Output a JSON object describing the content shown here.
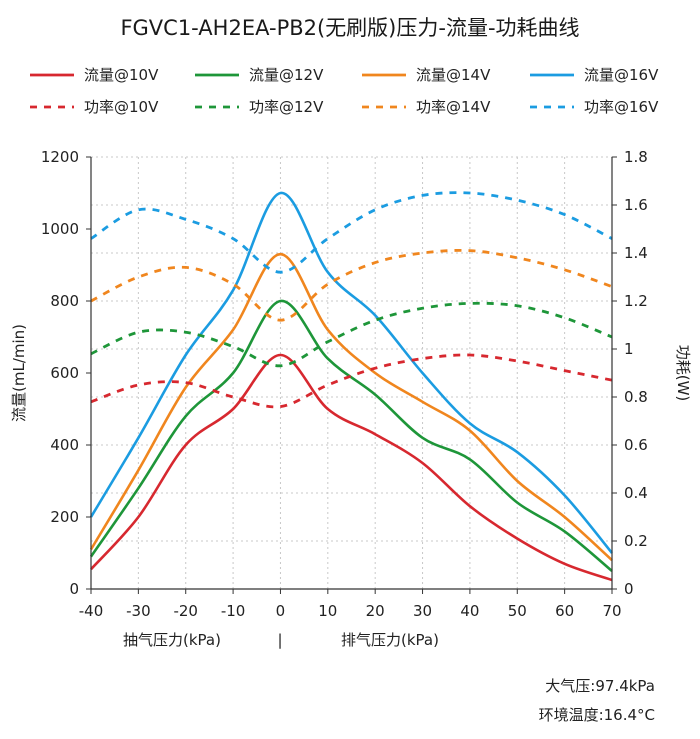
{
  "chart_data": {
    "type": "line",
    "title": "FGVC1-AH2EA-PB2(无刷版)压力-流量-功耗曲线",
    "ylabel": "流量(mL/min)",
    "y2label": "功耗(W)",
    "xlabel_left": "抽气压力(kPa)",
    "xlabel_sep": "|",
    "xlabel_right": "排气压力(kPa)",
    "xlim": [
      -40,
      70
    ],
    "ylim": [
      0,
      1200
    ],
    "y2lim": [
      0,
      1.8
    ],
    "xticks": [
      "-40",
      "-30",
      "-20",
      "-10",
      "0",
      "10",
      "20",
      "30",
      "40",
      "50",
      "60",
      "70"
    ],
    "yticks": [
      "0",
      "200",
      "400",
      "600",
      "800",
      "1000",
      "1200"
    ],
    "y2ticks": [
      "0",
      "0.2",
      "0.4",
      "0.6",
      "0.8",
      "1",
      "1.2",
      "1.4",
      "1.6",
      "1.8"
    ],
    "grid": true,
    "legend_position": "top",
    "x": [
      -40,
      -30,
      -20,
      -10,
      0,
      10,
      20,
      30,
      40,
      50,
      60,
      70
    ],
    "series": [
      {
        "name": "流量@10V",
        "color": "#d7282f",
        "axis": "left",
        "dash": false,
        "values": [
          55,
          200,
          400,
          500,
          650,
          500,
          430,
          350,
          230,
          140,
          70,
          25
        ]
      },
      {
        "name": "流量@12V",
        "color": "#1e9639",
        "axis": "left",
        "dash": false,
        "values": [
          90,
          280,
          480,
          600,
          800,
          640,
          540,
          420,
          360,
          240,
          160,
          50
        ]
      },
      {
        "name": "流量@14V",
        "color": "#f0861e",
        "axis": "left",
        "dash": false,
        "values": [
          110,
          330,
          560,
          720,
          930,
          720,
          600,
          520,
          440,
          300,
          200,
          80
        ]
      },
      {
        "name": "流量@16V",
        "color": "#1b9ce1",
        "axis": "left",
        "dash": false,
        "values": [
          200,
          420,
          650,
          830,
          1100,
          880,
          760,
          600,
          460,
          380,
          260,
          100
        ]
      },
      {
        "name": "功率@10V",
        "color": "#d7282f",
        "axis": "right",
        "dash": true,
        "values": [
          0.78,
          0.85,
          0.86,
          0.8,
          0.76,
          0.85,
          0.92,
          0.96,
          0.975,
          0.95,
          0.91,
          0.87
        ]
      },
      {
        "name": "功率@12V",
        "color": "#1e9639",
        "axis": "right",
        "dash": true,
        "values": [
          0.98,
          1.07,
          1.07,
          1.01,
          0.93,
          1.03,
          1.12,
          1.17,
          1.19,
          1.18,
          1.13,
          1.05
        ]
      },
      {
        "name": "功率@14V",
        "color": "#f0861e",
        "axis": "right",
        "dash": true,
        "values": [
          1.2,
          1.3,
          1.34,
          1.27,
          1.12,
          1.27,
          1.36,
          1.4,
          1.41,
          1.38,
          1.33,
          1.26
        ]
      },
      {
        "name": "功率@16V",
        "color": "#1b9ce1",
        "axis": "right",
        "dash": true,
        "values": [
          1.46,
          1.58,
          1.54,
          1.46,
          1.32,
          1.46,
          1.58,
          1.64,
          1.65,
          1.62,
          1.56,
          1.46
        ]
      }
    ]
  },
  "notes": {
    "pressure": "大气压:97.4kPa",
    "temperature": "环境温度:16.4°C"
  }
}
